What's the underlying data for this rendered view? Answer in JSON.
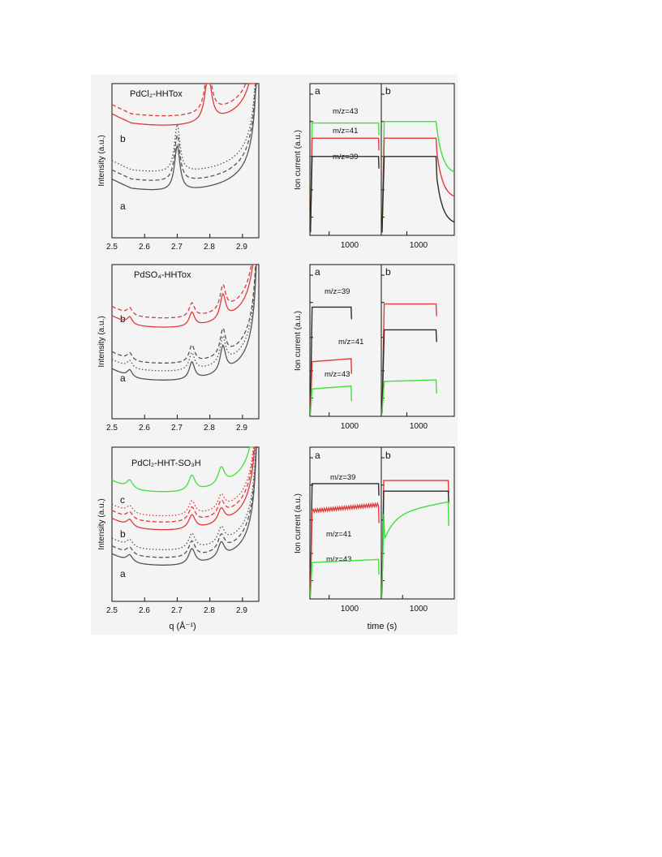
{
  "figure": {
    "background_color": "#f4f4f4",
    "colors": {
      "black": "#2b2b2b",
      "gray": "#555555",
      "red": "#e03a3a",
      "green": "#3ee03e"
    },
    "xrd_xlabel": "q (Å⁻¹)",
    "ms_xlabel": "time (s)",
    "xrd_ylabel": "Intensity (a.u.)",
    "ms_ylabel": "Ion current (a.u.)"
  },
  "chart_data": [
    {
      "type": "line",
      "id": "xrd1",
      "title": "PdCl₂-HHTox",
      "xlabel": "",
      "ylabel": "Intensity (a.u.)",
      "xlim": [
        2.5,
        2.95
      ],
      "xticks": [
        "2.5",
        "2.6",
        "2.7",
        "2.8",
        "2.9"
      ],
      "labels": [
        "b",
        "a"
      ],
      "series": [
        {
          "label": "b",
          "color": "#e03a3a",
          "style": "dashed",
          "base": 0.84,
          "dip": 0.11,
          "peaks": [
            [
              2.795,
              0.3,
              0.012
            ]
          ]
        },
        {
          "label": "b",
          "color": "#e03a3a",
          "style": "solid",
          "base": 0.78,
          "dip": 0.11,
          "peaks": [
            [
              2.795,
              0.31,
              0.012
            ]
          ]
        },
        {
          "label": "a",
          "color": "#555555",
          "style": "dotted",
          "base": 0.48,
          "dip": 0.12,
          "peaks": [
            [
              2.7,
              0.31,
              0.01
            ]
          ]
        },
        {
          "label": "a",
          "color": "#555555",
          "style": "dashed",
          "base": 0.42,
          "dip": 0.12,
          "peaks": [
            [
              2.7,
              0.3,
              0.01
            ]
          ]
        },
        {
          "label": "a",
          "color": "#555555",
          "style": "solid",
          "base": 0.36,
          "dip": 0.12,
          "peaks": [
            [
              2.7,
              0.29,
              0.01
            ]
          ]
        }
      ]
    },
    {
      "type": "line",
      "id": "ms1",
      "xlabel": "",
      "ylabel": "Ion current (a.u.)",
      "xticks": [
        "1000",
        "1000"
      ],
      "panel_labels": [
        "a",
        "b"
      ],
      "annotations": [
        "m/z=43",
        "m/z=41",
        "m/z=39"
      ],
      "panels": [
        {
          "label": "a",
          "x0": 300,
          "x1": 2900,
          "end": 2800,
          "xtick": 1000,
          "series": [
            {
              "name": "m/z=43",
              "color": "#3ee03e",
              "level": 0.74,
              "slope": 0.0
            },
            {
              "name": "m/z=41",
              "color": "#e03a3a",
              "level": 0.64,
              "slope": 0.0
            },
            {
              "name": "m/z=39",
              "color": "#2b2b2b",
              "level": 0.52,
              "slope": 0.0
            }
          ]
        },
        {
          "label": "b",
          "x0": 300,
          "x1": 2300,
          "end": 1800,
          "xtick": 1000,
          "decay": true,
          "series": [
            {
              "name": "m/z=43",
              "color": "#3ee03e",
              "level": 0.75,
              "slope": 0.0
            },
            {
              "name": "m/z=41",
              "color": "#e03a3a",
              "level": 0.64,
              "slope": 0.0
            },
            {
              "name": "m/z=39",
              "color": "#2b2b2b",
              "level": 0.52,
              "slope": 0.0
            }
          ]
        }
      ]
    },
    {
      "type": "line",
      "id": "xrd2",
      "title": "PdSO₄-HHTox",
      "xlabel": "",
      "ylabel": "Intensity (a.u.)",
      "xlim": [
        2.5,
        2.95
      ],
      "xticks": [
        "2.5",
        "2.6",
        "2.7",
        "2.8",
        "2.9"
      ],
      "labels": [
        "b",
        "a"
      ],
      "series": [
        {
          "label": "b",
          "color": "#e03a3a",
          "style": "dashed",
          "base": 0.7,
          "dip": 0.1,
          "peaks": [
            [
              2.555,
              0.05,
              0.01
            ],
            [
              2.745,
              0.09,
              0.01
            ],
            [
              2.84,
              0.16,
              0.01
            ]
          ]
        },
        {
          "label": "b",
          "color": "#e03a3a",
          "style": "solid",
          "base": 0.64,
          "dip": 0.1,
          "peaks": [
            [
              2.555,
              0.05,
              0.01
            ],
            [
              2.745,
              0.09,
              0.01
            ],
            [
              2.84,
              0.16,
              0.01
            ]
          ]
        },
        {
          "label": "a",
          "color": "#555555",
          "style": "dashed",
          "base": 0.41,
          "dip": 0.11,
          "peaks": [
            [
              2.555,
              0.05,
              0.01
            ],
            [
              2.745,
              0.11,
              0.01
            ],
            [
              2.84,
              0.17,
              0.01
            ]
          ]
        },
        {
          "label": "a",
          "color": "#555555",
          "style": "dotted",
          "base": 0.36,
          "dip": 0.11,
          "peaks": [
            [
              2.555,
              0.05,
              0.01
            ],
            [
              2.745,
              0.11,
              0.01
            ],
            [
              2.84,
              0.17,
              0.01
            ]
          ]
        },
        {
          "label": "a",
          "color": "#555555",
          "style": "solid",
          "base": 0.3,
          "dip": 0.11,
          "peaks": [
            [
              2.555,
              0.05,
              0.01
            ],
            [
              2.745,
              0.11,
              0.01
            ],
            [
              2.84,
              0.17,
              0.01
            ]
          ]
        }
      ]
    },
    {
      "type": "line",
      "id": "ms2",
      "xlabel": "",
      "ylabel": "Ion current (a.u.)",
      "xticks": [
        "1000",
        "1000"
      ],
      "panel_labels": [
        "a",
        "b"
      ],
      "annotations": [
        "m/z=39",
        "m/z=41",
        "m/z=43"
      ],
      "panels": [
        {
          "label": "a",
          "x0": 300,
          "x1": 2900,
          "end": 1800,
          "xtick": 1000,
          "series": [
            {
              "name": "m/z=39",
              "color": "#2b2b2b",
              "level": 0.72,
              "slope": 0.0
            },
            {
              "name": "m/z=41",
              "color": "#e03a3a",
              "level": 0.36,
              "slope": 0.02
            },
            {
              "name": "m/z=43",
              "color": "#3ee03e",
              "level": 0.18,
              "slope": 0.02
            }
          ]
        },
        {
          "label": "b",
          "x0": 300,
          "x1": 2300,
          "end": 1800,
          "xtick": 1000,
          "series": [
            {
              "name": "m/z=41",
              "color": "#e03a3a",
              "level": 0.74,
              "slope": 0.0
            },
            {
              "name": "m/z=39",
              "color": "#2b2b2b",
              "level": 0.57,
              "slope": 0.0
            },
            {
              "name": "m/z=43",
              "color": "#3ee03e",
              "level": 0.23,
              "slope": 0.01
            }
          ]
        }
      ]
    },
    {
      "type": "line",
      "id": "xrd3",
      "title": "PdCl₂-HHT-SO₃H",
      "xlabel": "q (Å⁻¹)",
      "ylabel": "Intensity (a.u.)",
      "xlim": [
        2.5,
        2.95
      ],
      "xticks": [
        "2.5",
        "2.6",
        "2.7",
        "2.8",
        "2.9"
      ],
      "labels": [
        "c",
        "b",
        "a"
      ],
      "series": [
        {
          "label": "c",
          "color": "#3ee03e",
          "style": "solid",
          "base": 0.76,
          "dip": 0.11,
          "peaks": [
            [
              2.555,
              0.06,
              0.012
            ],
            [
              2.745,
              0.1,
              0.012
            ],
            [
              2.835,
              0.11,
              0.012
            ]
          ]
        },
        {
          "label": "b",
          "color": "#e03a3a",
          "style": "dotted",
          "base": 0.6,
          "dip": 0.1,
          "peaks": [
            [
              2.555,
              0.05,
              0.012
            ],
            [
              2.745,
              0.09,
              0.012
            ],
            [
              2.835,
              0.09,
              0.012
            ]
          ]
        },
        {
          "label": "b",
          "color": "#e03a3a",
          "style": "dashed",
          "base": 0.56,
          "dip": 0.1,
          "peaks": [
            [
              2.555,
              0.05,
              0.012
            ],
            [
              2.745,
              0.09,
              0.012
            ],
            [
              2.835,
              0.09,
              0.012
            ]
          ]
        },
        {
          "label": "b",
          "color": "#e03a3a",
          "style": "solid",
          "base": 0.51,
          "dip": 0.1,
          "peaks": [
            [
              2.555,
              0.05,
              0.012
            ],
            [
              2.745,
              0.09,
              0.012
            ],
            [
              2.835,
              0.09,
              0.012
            ]
          ]
        },
        {
          "label": "a",
          "color": "#555555",
          "style": "dotted",
          "base": 0.38,
          "dip": 0.1,
          "peaks": [
            [
              2.555,
              0.05,
              0.012
            ],
            [
              2.745,
              0.1,
              0.012
            ],
            [
              2.835,
              0.1,
              0.012
            ]
          ]
        },
        {
          "label": "a",
          "color": "#555555",
          "style": "dashed",
          "base": 0.33,
          "dip": 0.1,
          "peaks": [
            [
              2.555,
              0.05,
              0.012
            ],
            [
              2.745,
              0.1,
              0.012
            ],
            [
              2.835,
              0.1,
              0.012
            ]
          ]
        },
        {
          "label": "a",
          "color": "#555555",
          "style": "solid",
          "base": 0.28,
          "dip": 0.1,
          "peaks": [
            [
              2.555,
              0.05,
              0.012
            ],
            [
              2.745,
              0.1,
              0.012
            ],
            [
              2.835,
              0.1,
              0.012
            ]
          ]
        }
      ]
    },
    {
      "type": "line",
      "id": "ms3",
      "xlabel": "time (s)",
      "ylabel": "Ion current (a.u.)",
      "xticks": [
        "1000",
        "1000"
      ],
      "panel_labels": [
        "a",
        "b"
      ],
      "annotations": [
        "m/z=39",
        "m/z=41",
        "m/z=43"
      ],
      "panels": [
        {
          "label": "a",
          "x0": 300,
          "x1": 2900,
          "end": 2800,
          "xtick": 1000,
          "noisy": true,
          "series": [
            {
              "name": "m/z=39",
              "color": "#2b2b2b",
              "level": 0.76,
              "slope": 0.0
            },
            {
              "name": "m/z=41",
              "color": "#e03a3a",
              "level": 0.58,
              "slope": 0.04
            },
            {
              "name": "m/z=43",
              "color": "#3ee03e",
              "level": 0.24,
              "slope": 0.02
            }
          ]
        },
        {
          "label": "b",
          "x0": 300,
          "x1": 2700,
          "end": 2500,
          "xtick": 1000,
          "series": [
            {
              "name": "m/z=41",
              "color": "#e03a3a",
              "level": 0.78,
              "slope": 0.0
            },
            {
              "name": "m/z=39",
              "color": "#2b2b2b",
              "level": 0.71,
              "slope": 0.0
            },
            {
              "name": "m/z=43",
              "color": "#3ee03e",
              "level": 0.56,
              "slope": 0.08,
              "rise": true
            }
          ]
        }
      ]
    }
  ]
}
